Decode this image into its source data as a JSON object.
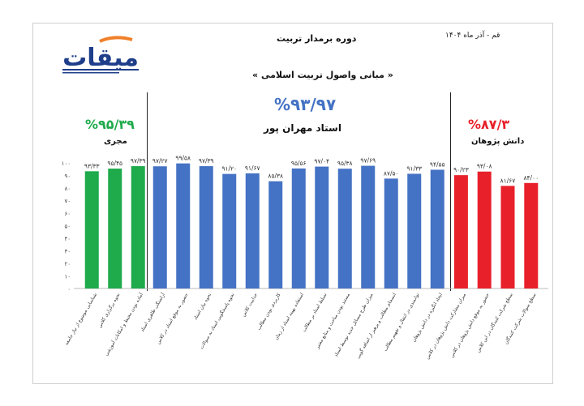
{
  "header": {
    "title": "دوره برمدار تربیت",
    "subtitle": "« مبانی واصول تربیت اسلامی »",
    "date": "قم - آذر ماه ۱۴۰۴",
    "logo_text": "میقات"
  },
  "groups": {
    "left": {
      "percent": "%۹۵/۳۹",
      "name": "مجری",
      "color": "#1faa4b"
    },
    "center": {
      "percent": "%۹۳/۹۷",
      "name": "استاد مهران پور",
      "color": "#4472c4"
    },
    "right": {
      "percent": "%۸۷/۳",
      "name": "دانش پژوهان",
      "color": "#e8202a"
    }
  },
  "chart_data": {
    "type": "bar",
    "ylim": [
      0,
      100
    ],
    "yticks": [
      "۰",
      "۱۰",
      "۲۰",
      "۳۰",
      "۴۰",
      "۵۰",
      "۶۰",
      "۷۰",
      "۸۰",
      "۹۰",
      "۱۰۰"
    ],
    "series": [
      {
        "name": "مجری",
        "color": "#1faa4b",
        "categories": [
          "شناسایی موضوع از نیاز جامعه",
          "نحوه برگزاری کلاس",
          "آماده بودن محیط و امکانات آموزشی"
        ],
        "values": [
          93.33,
          95.45,
          97.39
        ],
        "labels": [
          "۹۳/۳۳",
          "۹۵/۴۵",
          "۹۷/۳۹"
        ]
      },
      {
        "name": "استاد مهران پور",
        "color": "#4472c4",
        "categories": [
          "آراستگی ظاهری استاد",
          "حضور به موقع استاد در کلاس",
          "نحوه بیان استاد",
          "نحوه پاسخگویی استاد به سوالات",
          "جذابیت کلاس",
          "کاربردی بودن مطالب",
          "استفاده بهینه استاد از زمان",
          "تسلط استاد بر مطالب",
          "مستند بودن مباحث و منابع معتبر",
          "میزان طرح مسائل جدید توسط استاد",
          "انسجام مطالب و پرهیز از اضافه گویی",
          "توانمندی در انتقال و تفهیم مطالب",
          "ایجاد انگیزه در دانش پژوهان"
        ],
        "values": [
          97.27,
          99.58,
          97.39,
          91.2,
          91.67,
          85.38,
          95.56,
          97.04,
          95.38,
          97.69,
          87.5,
          91.33,
          94.55
        ],
        "labels": [
          "۹۷/۲۷",
          "۹۹/۵۸",
          "۹۷/۳۹",
          "۹۱/۲۰",
          "۹۱/۶۷",
          "۸۵/۳۸",
          "۹۵/۵۶",
          "۹۷/۰۴",
          "۹۵/۳۸",
          "۹۷/۶۹",
          "۸۷/۵۰",
          "۹۱/۳۳",
          "۹۴/۵۵"
        ]
      },
      {
        "name": "دانش پژوهان",
        "color": "#e8202a",
        "categories": [
          "میزان مشارکت دانش پژوهان در کلاس",
          "حضور به موقع دانش پژوهان در کلاس",
          "سطح شرکت کنندگان در این کلاس",
          "سطح سوالات شرکت کنندگان"
        ],
        "values": [
          90.23,
          93.08,
          81.67,
          84.0
        ],
        "labels": [
          "۹۰/۲۳",
          "۹۳/۰۸",
          "۸۱/۶۷",
          "۸۴/۰۰"
        ]
      }
    ]
  }
}
